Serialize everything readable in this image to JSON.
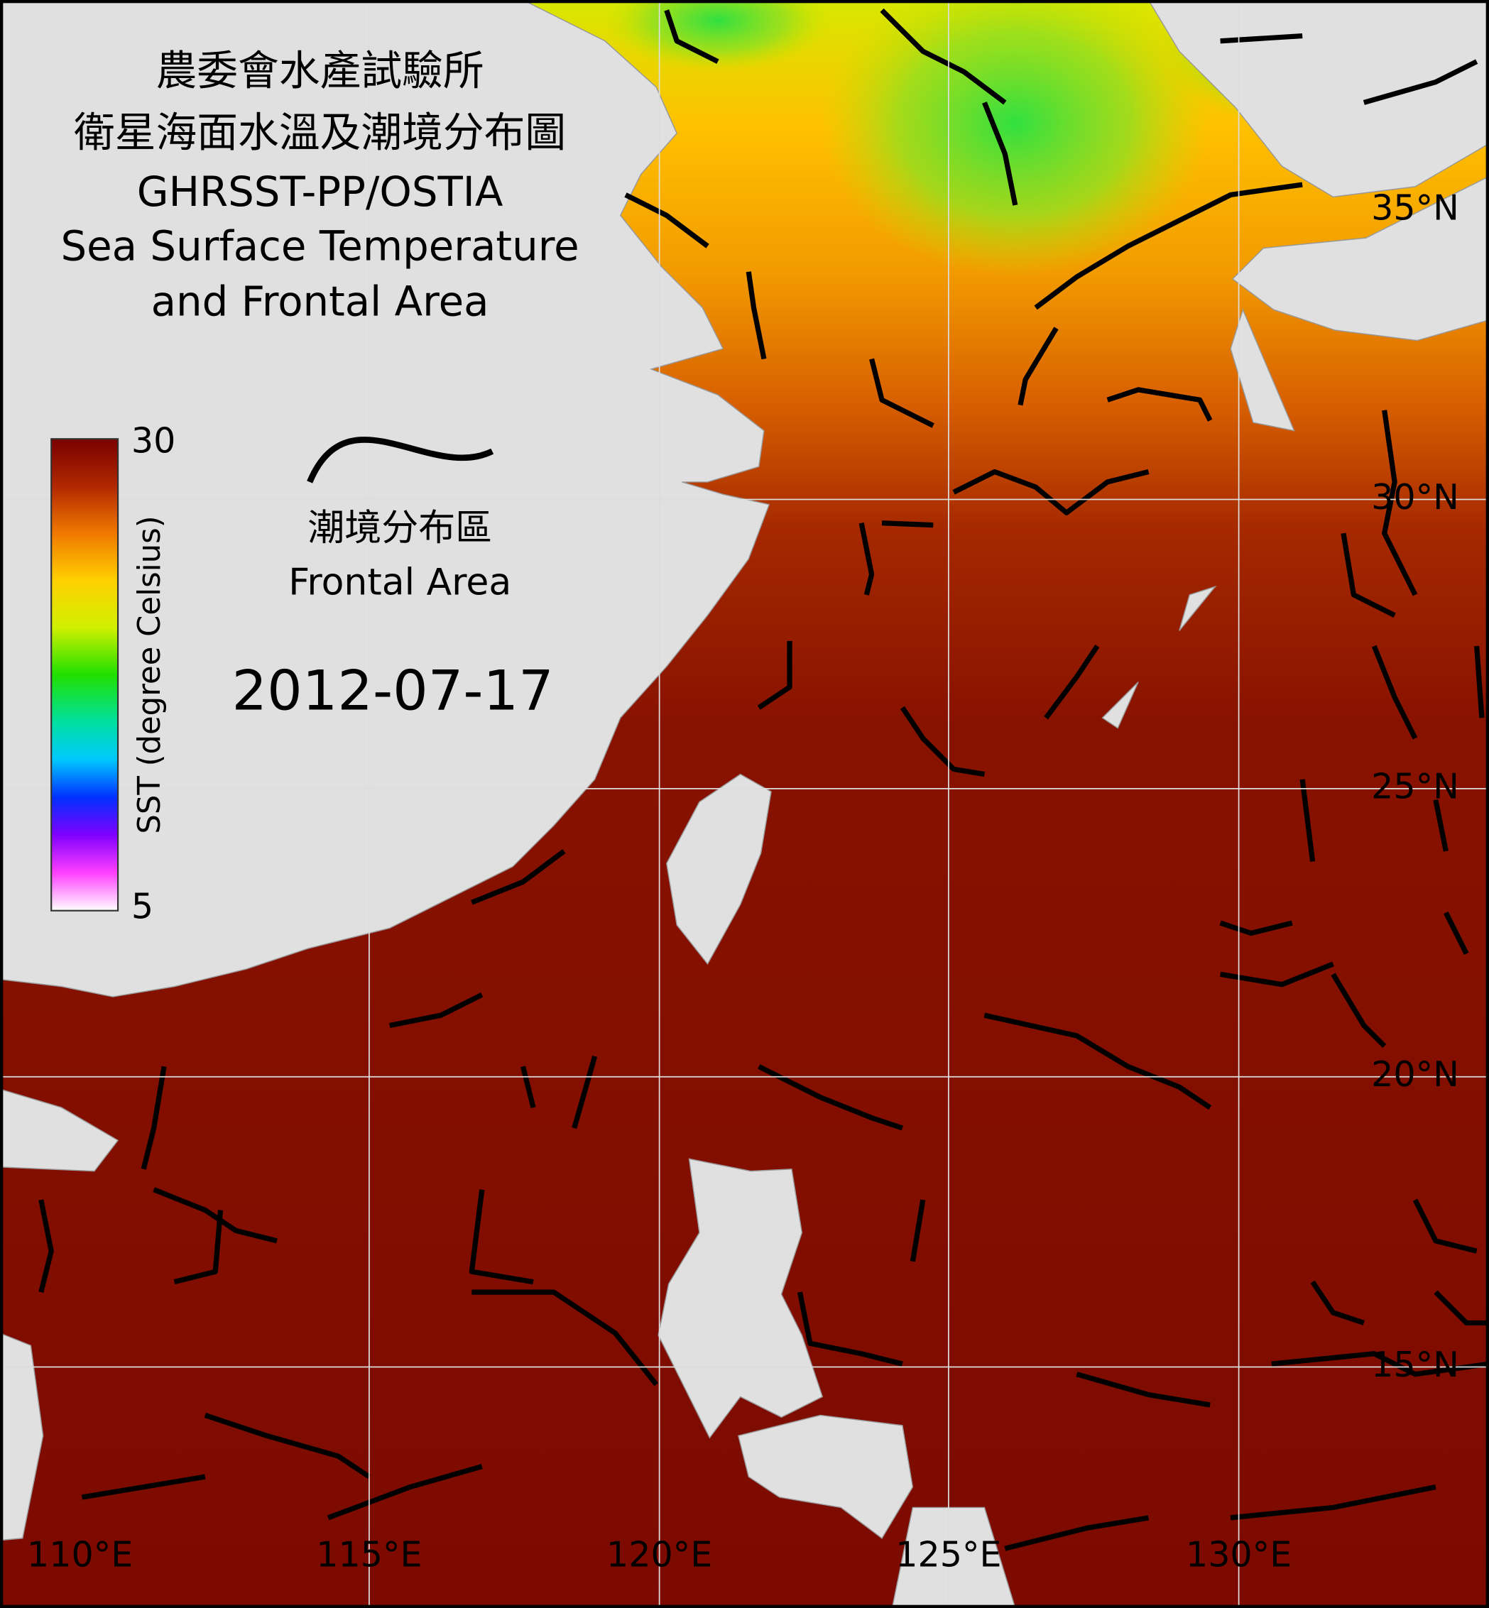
{
  "header": {
    "title_lines": [
      "農委會水產試驗所",
      "衛星海面水溫及潮境分布圖",
      "GHRSST-PP/OSTIA",
      "Sea Surface Temperature",
      "and Frontal Area"
    ]
  },
  "colorbar": {
    "max_label": "30",
    "min_label": "5",
    "axis_label": "SST (degree Celsius)"
  },
  "legend": {
    "label_zh": "潮境分布區",
    "label_en": "Frontal Area"
  },
  "date": "2012-07-17",
  "lat_labels": [
    "35°N",
    "30°N",
    "25°N",
    "20°N",
    "15°N"
  ],
  "lon_labels": [
    "110°E",
    "115°E",
    "120°E",
    "125°E",
    "130°E"
  ]
}
